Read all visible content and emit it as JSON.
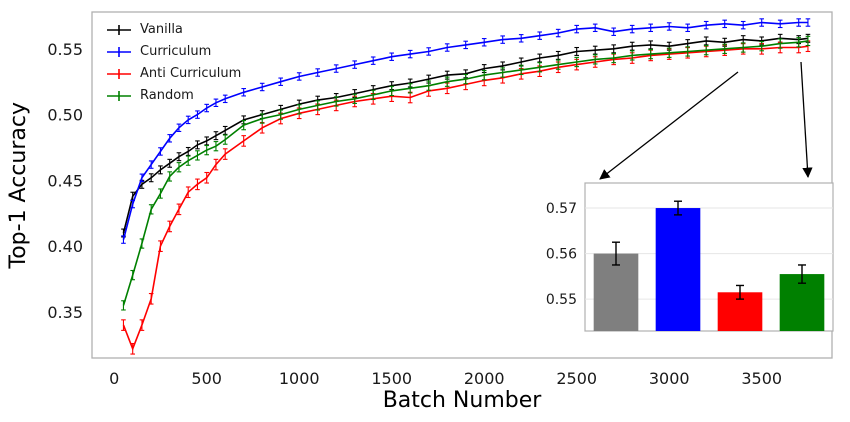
{
  "chart_data": {
    "type": "line",
    "main": {
      "type": "line",
      "xlabel": "Batch Number",
      "ylabel": "Top-1 Accuracy",
      "xticks": [
        0,
        500,
        1000,
        1500,
        2000,
        2500,
        3000,
        3500
      ],
      "yticks": [
        0.35,
        0.4,
        0.45,
        0.5,
        0.55
      ],
      "xlim": [
        -120,
        3880
      ],
      "ylim": [
        0.315,
        0.578
      ],
      "grid": false,
      "legend_position": "upper left",
      "x": [
        50,
        100,
        150,
        200,
        250,
        300,
        350,
        400,
        450,
        500,
        550,
        600,
        700,
        800,
        900,
        1000,
        1100,
        1200,
        1300,
        1400,
        1500,
        1600,
        1700,
        1800,
        1900,
        2000,
        2100,
        2200,
        2300,
        2400,
        2500,
        2600,
        2700,
        2800,
        2900,
        3000,
        3100,
        3200,
        3300,
        3400,
        3500,
        3600,
        3700,
        3750
      ],
      "series": [
        {
          "name": "Vanilla",
          "color": "#000000",
          "yerr": 0.003,
          "y": [
            0.41,
            0.438,
            0.447,
            0.452,
            0.458,
            0.463,
            0.468,
            0.472,
            0.477,
            0.48,
            0.484,
            0.488,
            0.496,
            0.5,
            0.504,
            0.508,
            0.511,
            0.513,
            0.516,
            0.519,
            0.522,
            0.524,
            0.527,
            0.53,
            0.531,
            0.535,
            0.537,
            0.54,
            0.543,
            0.545,
            0.548,
            0.549,
            0.55,
            0.552,
            0.553,
            0.552,
            0.554,
            0.556,
            0.555,
            0.557,
            0.556,
            0.558,
            0.557,
            0.558
          ]
        },
        {
          "name": "Curriculum",
          "color": "#0000ff",
          "yerr": 0.0028,
          "y": [
            0.405,
            0.432,
            0.452,
            0.462,
            0.472,
            0.482,
            0.49,
            0.496,
            0.5,
            0.505,
            0.509,
            0.512,
            0.517,
            0.521,
            0.525,
            0.529,
            0.532,
            0.535,
            0.538,
            0.541,
            0.544,
            0.546,
            0.548,
            0.551,
            0.553,
            0.555,
            0.557,
            0.558,
            0.56,
            0.562,
            0.565,
            0.566,
            0.563,
            0.565,
            0.566,
            0.567,
            0.566,
            0.568,
            0.569,
            0.568,
            0.57,
            0.569,
            0.57,
            0.57
          ]
        },
        {
          "name": "Anti Curriculum",
          "color": "#ff0000",
          "yerr": 0.004,
          "y": [
            0.34,
            0.322,
            0.34,
            0.36,
            0.4,
            0.415,
            0.428,
            0.441,
            0.447,
            0.452,
            0.462,
            0.47,
            0.48,
            0.49,
            0.497,
            0.501,
            0.504,
            0.507,
            0.51,
            0.512,
            0.514,
            0.513,
            0.518,
            0.52,
            0.523,
            0.526,
            0.528,
            0.531,
            0.533,
            0.536,
            0.538,
            0.54,
            0.542,
            0.543,
            0.545,
            0.546,
            0.547,
            0.548,
            0.549,
            0.55,
            0.55,
            0.551,
            0.551,
            0.552
          ]
        },
        {
          "name": "Random",
          "color": "#008000",
          "yerr": 0.0035,
          "y": [
            0.355,
            0.378,
            0.402,
            0.428,
            0.44,
            0.453,
            0.46,
            0.465,
            0.469,
            0.473,
            0.476,
            0.481,
            0.492,
            0.497,
            0.5,
            0.504,
            0.507,
            0.51,
            0.512,
            0.515,
            0.518,
            0.52,
            0.522,
            0.525,
            0.527,
            0.53,
            0.532,
            0.534,
            0.536,
            0.538,
            0.54,
            0.542,
            0.543,
            0.545,
            0.546,
            0.547,
            0.548,
            0.549,
            0.55,
            0.551,
            0.552,
            0.554,
            0.555,
            0.556
          ]
        }
      ]
    },
    "inset": {
      "type": "bar",
      "categories": [
        "Vanilla",
        "Curriculum",
        "Anti Curriculum",
        "Random"
      ],
      "values": [
        0.56,
        0.57,
        0.5515,
        0.5555
      ],
      "errors": [
        0.0025,
        0.0015,
        0.0015,
        0.002
      ],
      "colors": [
        "#7f7f7f",
        "#0000ff",
        "#ff0000",
        "#008000"
      ],
      "yticks": [
        0.55,
        0.56,
        0.57
      ],
      "ylim": [
        0.543,
        0.5755
      ],
      "grid": true,
      "pointer_arrows": true
    }
  },
  "figure": {
    "background": "#ffffff"
  }
}
